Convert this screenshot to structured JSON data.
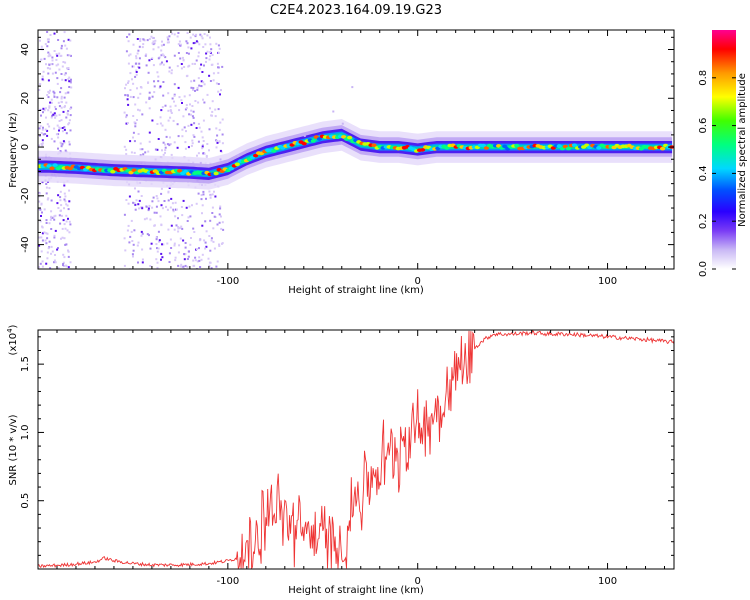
{
  "title": "C2E4.2023.164.09.19.G23",
  "chart_data": [
    {
      "type": "heatmap",
      "xlabel": "Height of straight line (km)",
      "ylabel": "Frequency (Hz)",
      "xlim": [
        -200,
        135
      ],
      "ylim": [
        -50,
        48
      ],
      "xticks": [
        -100,
        0,
        100
      ],
      "xtick_labels": [
        "-100",
        "0",
        "100"
      ],
      "yticks": [
        -40,
        -20,
        0,
        20,
        40
      ],
      "ytick_labels": [
        "-40",
        "-20",
        "0",
        "20",
        "40"
      ],
      "ridge": {
        "x": [
          -195,
          -180,
          -160,
          -140,
          -120,
          -110,
          -100,
          -90,
          -80,
          -70,
          -60,
          -50,
          -40,
          -35,
          -30,
          -20,
          -10,
          0,
          10,
          30,
          60,
          90,
          110,
          135
        ],
        "y": [
          -8,
          -8.5,
          -9.5,
          -10,
          -10.5,
          -11,
          -9,
          -5,
          -2,
          0,
          2,
          4,
          5,
          3,
          1,
          0,
          0,
          -1,
          0,
          0,
          0,
          0,
          0,
          0
        ]
      },
      "scatter_noise_regions": [
        [
          -200,
          -183
        ],
        [
          -155,
          -103
        ]
      ],
      "colorbar": {
        "label": "Normalized spectral amplitude",
        "range": [
          0,
          1
        ],
        "ticks": [
          0.0,
          0.2,
          0.4,
          0.6,
          0.8
        ],
        "tick_labels": [
          "0.0",
          "0.2",
          "0.4",
          "0.6",
          "0.8"
        ],
        "colors": [
          "#ffffff",
          "#9b70f0",
          "#3c00ff",
          "#0000ff",
          "#00d8ff",
          "#00ff40",
          "#ffff00",
          "#ff7f00",
          "#ff0000",
          "#ff0080"
        ]
      },
      "grid": false
    },
    {
      "type": "line",
      "xlabel": "Height of straight line (km)",
      "ylabel": "SNR (10 * v/v)",
      "multiplier_label": "(x10",
      "multiplier_exp": "4",
      "multiplier_close": ")",
      "xlim": [
        -200,
        135
      ],
      "ylim": [
        0,
        1.75
      ],
      "xticks": [
        -100,
        0,
        100
      ],
      "xtick_labels": [
        "-100",
        "0",
        "100"
      ],
      "yticks": [
        0.5,
        1.0,
        1.5
      ],
      "ytick_labels": [
        "0.5",
        "1.0",
        "1.5"
      ],
      "series": [
        {
          "color": "#ee3333",
          "x": [
            -200,
            -185,
            -170,
            -165,
            -160,
            -150,
            -140,
            -125,
            -110,
            -100,
            -95,
            -90,
            -85,
            -82,
            -80,
            -77,
            -75,
            -72,
            -70,
            -66,
            -62,
            -58,
            -55,
            -50,
            -45,
            -40,
            -37,
            -35,
            -33,
            -30,
            -28,
            -25,
            -22,
            -20,
            -17,
            -15,
            -12,
            -10,
            -7,
            -5,
            -2,
            0,
            3,
            5,
            8,
            10,
            12,
            15,
            18,
            20,
            25,
            30,
            35,
            40,
            50,
            60,
            70,
            80,
            90,
            100,
            110,
            120,
            135
          ],
          "y": [
            0.02,
            0.03,
            0.05,
            0.08,
            0.06,
            0.04,
            0.03,
            0.03,
            0.04,
            0.06,
            0.08,
            0.12,
            0.2,
            0.35,
            0.45,
            0.4,
            0.5,
            0.35,
            0.4,
            0.3,
            0.28,
            0.3,
            0.25,
            0.22,
            0.2,
            0.18,
            0.25,
            0.4,
            0.55,
            0.5,
            0.65,
            0.6,
            0.75,
            0.7,
            0.85,
            0.8,
            0.9,
            0.85,
            1.0,
            0.95,
            1.05,
            1.0,
            1.1,
            1.05,
            1.15,
            1.2,
            1.15,
            1.3,
            1.35,
            1.45,
            1.55,
            1.62,
            1.68,
            1.72,
            1.72,
            1.73,
            1.72,
            1.72,
            1.71,
            1.7,
            1.69,
            1.68,
            1.66
          ]
        }
      ],
      "grid": false
    }
  ]
}
